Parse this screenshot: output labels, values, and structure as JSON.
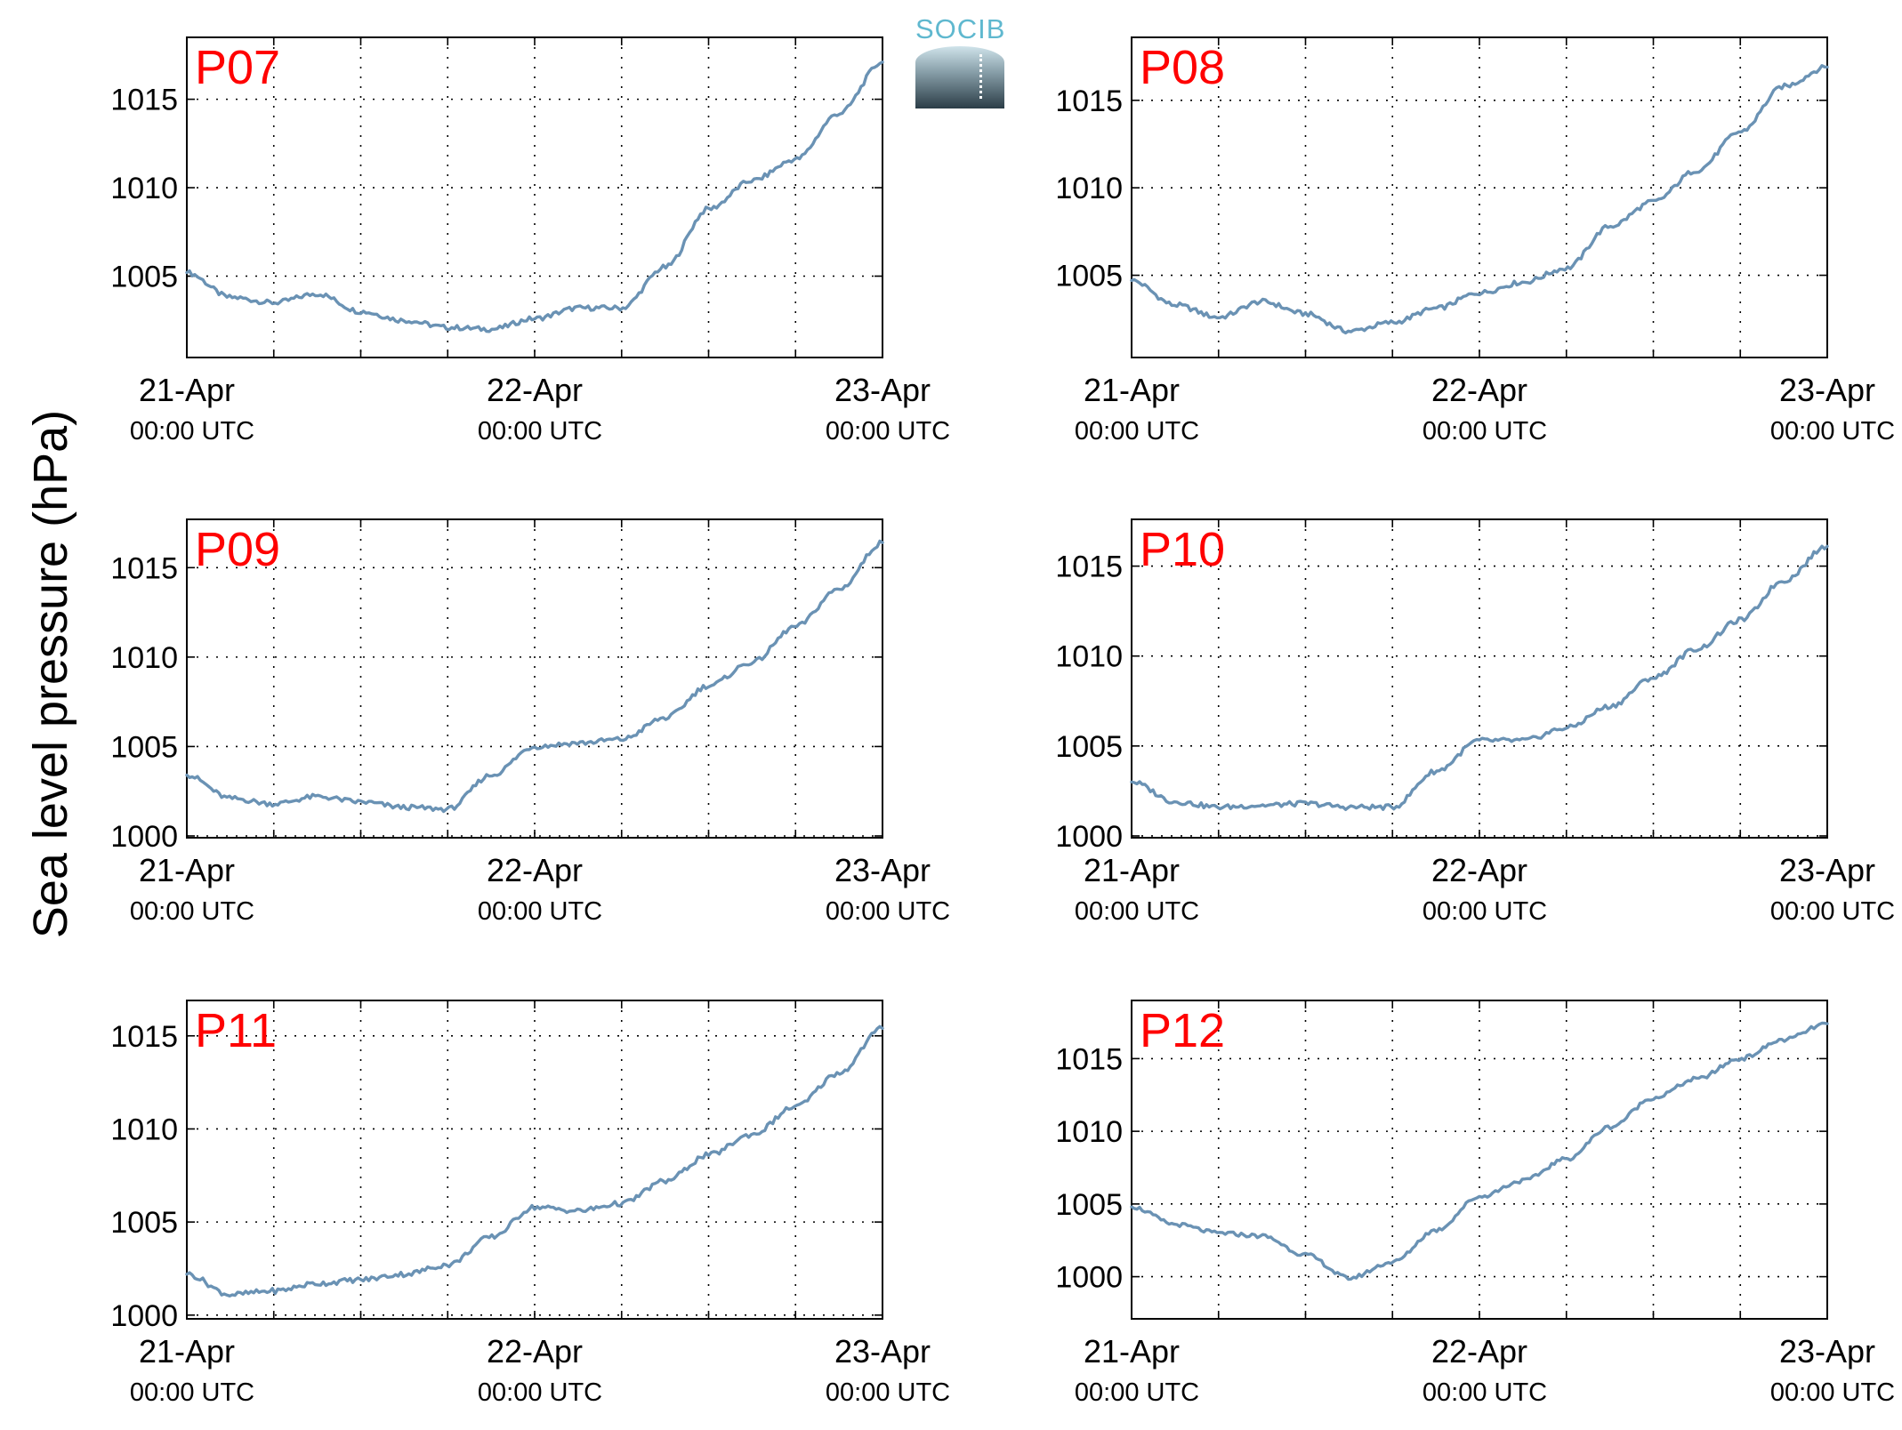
{
  "figure": {
    "ylabel": "Sea level pressure (hPa)",
    "logo_text": "SOCIB",
    "line_color": "#6a92b4",
    "station_label_color": "#ff0000",
    "grid": "dotted"
  },
  "chart_data": [
    {
      "type": "line",
      "title": "P07",
      "x_ticks": [
        {
          "date": "21-Apr",
          "time": "00:00 UTC"
        },
        {
          "date": "22-Apr",
          "time": "00:00 UTC"
        },
        {
          "date": "23-Apr",
          "time": "00:00 UTC"
        }
      ],
      "xlim": [
        "2021-04-21 00:00",
        "2021-04-23 00:00"
      ],
      "ylim": [
        1000.4,
        1018.5
      ],
      "yticks": [
        1005,
        1010,
        1015
      ],
      "series": [
        {
          "x": [
            "21-Apr 00:00",
            "21-Apr 03:00",
            "21-Apr 06:00",
            "21-Apr 09:00",
            "21-Apr 12:00",
            "21-Apr 15:00",
            "21-Apr 18:00",
            "21-Apr 21:00",
            "22-Apr 00:00",
            "22-Apr 03:00",
            "22-Apr 06:00",
            "22-Apr 09:00",
            "22-Apr 12:00",
            "22-Apr 15:00",
            "22-Apr 18:00",
            "22-Apr 21:00",
            "23-Apr 00:00"
          ],
          "y": [
            1005.2,
            1003.8,
            1003.5,
            1004.0,
            1003.0,
            1002.5,
            1002.1,
            1002.0,
            1002.6,
            1003.2,
            1003.2,
            1005.5,
            1008.8,
            1010.4,
            1011.6,
            1014.2,
            1017.1
          ]
        }
      ]
    },
    {
      "type": "line",
      "title": "P08",
      "x_ticks": [
        {
          "date": "21-Apr",
          "time": "00:00 UTC"
        },
        {
          "date": "22-Apr",
          "time": "00:00 UTC"
        },
        {
          "date": "23-Apr",
          "time": "00:00 UTC"
        }
      ],
      "xlim": [
        "2021-04-21 00:00",
        "2021-04-23 00:00"
      ],
      "ylim": [
        1000.3,
        1018.6
      ],
      "yticks": [
        1005,
        1010,
        1015
      ],
      "series": [
        {
          "x": [
            "21-Apr 00:00",
            "21-Apr 03:00",
            "21-Apr 06:00",
            "21-Apr 09:00",
            "21-Apr 12:00",
            "21-Apr 15:00",
            "21-Apr 18:00",
            "21-Apr 21:00",
            "22-Apr 00:00",
            "22-Apr 03:00",
            "22-Apr 06:00",
            "22-Apr 09:00",
            "22-Apr 12:00",
            "22-Apr 15:00",
            "22-Apr 18:00",
            "22-Apr 21:00",
            "23-Apr 00:00"
          ],
          "y": [
            1004.7,
            1003.3,
            1002.6,
            1003.5,
            1002.8,
            1001.8,
            1002.3,
            1003.1,
            1004.0,
            1004.6,
            1005.4,
            1007.8,
            1009.2,
            1011.0,
            1013.2,
            1015.8,
            1016.9
          ]
        }
      ]
    },
    {
      "type": "line",
      "title": "P09",
      "x_ticks": [
        {
          "date": "21-Apr",
          "time": "00:00 UTC"
        },
        {
          "date": "22-Apr",
          "time": "00:00 UTC"
        },
        {
          "date": "23-Apr",
          "time": "00:00 UTC"
        }
      ],
      "xlim": [
        "2021-04-21 00:00",
        "2021-04-23 00:00"
      ],
      "ylim": [
        999.9,
        1017.7
      ],
      "yticks": [
        1000,
        1005,
        1010,
        1015
      ],
      "series": [
        {
          "x": [
            "21-Apr 00:00",
            "21-Apr 03:00",
            "21-Apr 06:00",
            "21-Apr 09:00",
            "21-Apr 12:00",
            "21-Apr 15:00",
            "21-Apr 18:00",
            "21-Apr 21:00",
            "22-Apr 00:00",
            "22-Apr 03:00",
            "22-Apr 06:00",
            "22-Apr 09:00",
            "22-Apr 12:00",
            "22-Apr 15:00",
            "22-Apr 18:00",
            "22-Apr 21:00",
            "23-Apr 00:00"
          ],
          "y": [
            1003.4,
            1002.1,
            1001.8,
            1002.2,
            1001.9,
            1001.6,
            1001.5,
            1003.4,
            1005.0,
            1005.2,
            1005.4,
            1006.6,
            1008.4,
            1009.7,
            1011.7,
            1013.8,
            1016.4
          ]
        }
      ]
    },
    {
      "type": "line",
      "title": "P10",
      "x_ticks": [
        {
          "date": "21-Apr",
          "time": "00:00 UTC"
        },
        {
          "date": "22-Apr",
          "time": "00:00 UTC"
        },
        {
          "date": "23-Apr",
          "time": "00:00 UTC"
        }
      ],
      "xlim": [
        "2021-04-21 00:00",
        "2021-04-23 00:00"
      ],
      "ylim": [
        999.9,
        1017.6
      ],
      "yticks": [
        1000,
        1005,
        1010,
        1015
      ],
      "series": [
        {
          "x": [
            "21-Apr 00:00",
            "21-Apr 03:00",
            "21-Apr 06:00",
            "21-Apr 09:00",
            "21-Apr 12:00",
            "21-Apr 15:00",
            "21-Apr 18:00",
            "21-Apr 21:00",
            "22-Apr 00:00",
            "22-Apr 03:00",
            "22-Apr 06:00",
            "22-Apr 09:00",
            "22-Apr 12:00",
            "22-Apr 15:00",
            "22-Apr 18:00",
            "22-Apr 21:00",
            "23-Apr 00:00"
          ],
          "y": [
            1003.0,
            1001.9,
            1001.6,
            1001.7,
            1001.8,
            1001.6,
            1001.6,
            1003.6,
            1005.3,
            1005.3,
            1006.0,
            1007.2,
            1008.8,
            1010.4,
            1012.0,
            1014.2,
            1016.1
          ]
        }
      ]
    },
    {
      "type": "line",
      "title": "P11",
      "x_ticks": [
        {
          "date": "21-Apr",
          "time": "00:00 UTC"
        },
        {
          "date": "22-Apr",
          "time": "00:00 UTC"
        },
        {
          "date": "23-Apr",
          "time": "00:00 UTC"
        }
      ],
      "xlim": [
        "2021-04-21 00:00",
        "2021-04-23 00:00"
      ],
      "ylim": [
        999.8,
        1016.9
      ],
      "yticks": [
        1000,
        1005,
        1010,
        1015
      ],
      "series": [
        {
          "x": [
            "21-Apr 00:00",
            "21-Apr 03:00",
            "21-Apr 06:00",
            "21-Apr 09:00",
            "21-Apr 12:00",
            "21-Apr 15:00",
            "21-Apr 18:00",
            "21-Apr 21:00",
            "22-Apr 00:00",
            "22-Apr 03:00",
            "22-Apr 06:00",
            "22-Apr 09:00",
            "22-Apr 12:00",
            "22-Apr 15:00",
            "22-Apr 18:00",
            "22-Apr 21:00",
            "23-Apr 00:00"
          ],
          "y": [
            1002.2,
            1001.1,
            1001.3,
            1001.7,
            1001.9,
            1002.2,
            1002.7,
            1004.2,
            1005.8,
            1005.6,
            1006.0,
            1007.2,
            1008.6,
            1009.7,
            1011.2,
            1013.0,
            1015.4
          ]
        }
      ]
    },
    {
      "type": "line",
      "title": "P12",
      "x_ticks": [
        {
          "date": "21-Apr",
          "time": "00:00 UTC"
        },
        {
          "date": "22-Apr",
          "time": "00:00 UTC"
        },
        {
          "date": "23-Apr",
          "time": "00:00 UTC"
        }
      ],
      "xlim": [
        "2021-04-21 00:00",
        "2021-04-23 00:00"
      ],
      "ylim": [
        997.1,
        1019.0
      ],
      "yticks": [
        1000,
        1005,
        1010,
        1015
      ],
      "series": [
        {
          "x": [
            "21-Apr 00:00",
            "21-Apr 03:00",
            "21-Apr 06:00",
            "21-Apr 09:00",
            "21-Apr 12:00",
            "21-Apr 15:00",
            "21-Apr 18:00",
            "21-Apr 21:00",
            "22-Apr 00:00",
            "22-Apr 03:00",
            "22-Apr 06:00",
            "22-Apr 09:00",
            "22-Apr 12:00",
            "22-Apr 15:00",
            "22-Apr 18:00",
            "22-Apr 21:00",
            "23-Apr 00:00"
          ],
          "y": [
            1004.8,
            1003.6,
            1003.0,
            1002.8,
            1001.5,
            999.9,
            1001.0,
            1003.2,
            1005.5,
            1006.6,
            1008.1,
            1010.3,
            1012.3,
            1013.6,
            1015.0,
            1016.3,
            1017.4
          ]
        }
      ]
    }
  ]
}
